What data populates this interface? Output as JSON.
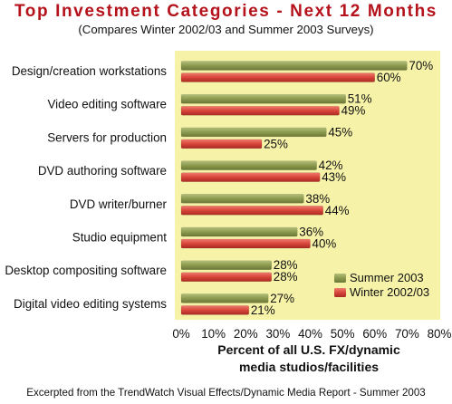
{
  "chart_data": {
    "type": "bar",
    "title": "Top Investment Categories - Next 12 Months",
    "subtitle": "(Compares Winter 2002/03 and Summer 2003 Surveys)",
    "xlabel": [
      "Percent of all U.S. FX/dynamic",
      "media studios/facilities"
    ],
    "ylabel": "",
    "xlim": [
      0,
      80
    ],
    "x_ticks": [
      "0%",
      "10%",
      "20%",
      "30%",
      "40%",
      "50%",
      "60%",
      "70%",
      "80%"
    ],
    "categories": [
      "Design/creation workstations",
      "Video editing software",
      "Servers for production",
      "DVD authoring software",
      "DVD writer/burner",
      "Studio equipment",
      "Desktop compositing software",
      "Digital video editing systems"
    ],
    "series": [
      {
        "name": "Summer 2003",
        "color": "#8c9a4f",
        "values": [
          70,
          51,
          45,
          42,
          38,
          36,
          28,
          27
        ]
      },
      {
        "name": "Winter 2002/03",
        "color": "#d8453a",
        "values": [
          60,
          49,
          25,
          43,
          44,
          40,
          28,
          21
        ]
      }
    ],
    "value_suffix": "%",
    "legend_position": "bottom-right",
    "grid": false,
    "plot_background": "#f6f3a8",
    "footnote": "Excerpted from the TrendWatch Visual Effects/Dynamic Media Report - Summer 2003"
  }
}
